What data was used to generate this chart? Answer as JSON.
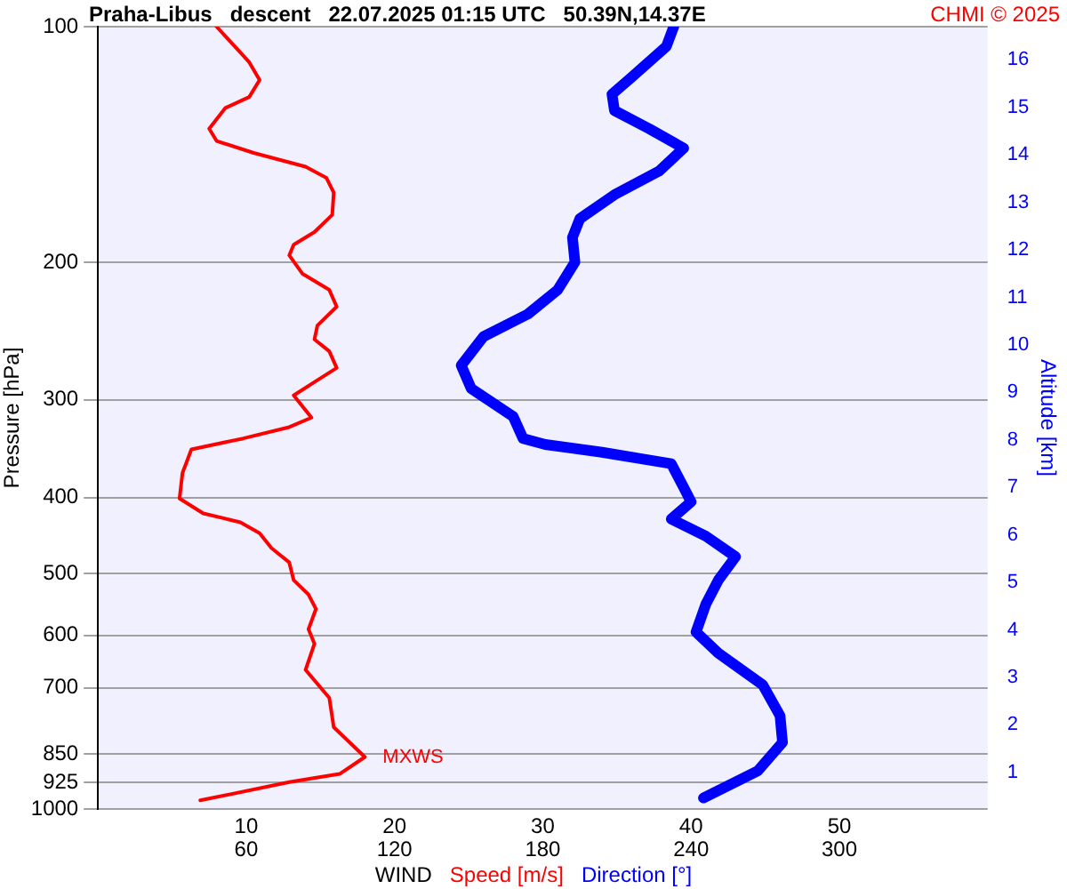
{
  "chart_data": {
    "type": "line",
    "orientation": "horizontal",
    "title": "Praha-Libus   descent   22.07.2025 01:15 UTC   50.39N,14.37E",
    "xlabel": "WIND",
    "ylabel": "Pressure [hPa]",
    "y2label": "Altitude [km]",
    "annotations": [
      "CHMI © 2025",
      {
        "text": "MXWS",
        "x": 18,
        "y": 858
      }
    ],
    "xlim": [
      0,
      60
    ],
    "xticks": [
      10,
      20,
      30,
      40,
      50
    ],
    "x2lim": [
      0,
      360
    ],
    "x2ticks": [
      60,
      120,
      180,
      240,
      300
    ],
    "ylim": [
      1000,
      100
    ],
    "yticks": [
      100,
      200,
      300,
      400,
      500,
      600,
      700,
      850,
      925,
      1000
    ],
    "log": "y",
    "y2lim": [
      0.23,
      16.7
    ],
    "y2ticks": [
      1,
      2,
      3,
      4,
      5,
      6,
      7,
      8,
      9,
      10,
      11,
      12,
      13,
      14,
      15,
      16
    ],
    "grid": true,
    "legend": "bottom",
    "marker": "none",
    "line_style": "solid",
    "series": [
      {
        "name": "Speed [m/s]",
        "color": "#ff0000",
        "values": [
          8.0,
          10.2,
          10.9,
          10.2,
          8.6,
          7.5,
          8.0,
          10.5,
          14.0,
          15.4,
          15.9,
          15.8,
          14.6,
          13.2,
          12.9,
          13.8,
          15.6,
          16.1,
          14.8,
          14.6,
          15.6,
          16.1,
          14.8,
          13.2,
          14.4,
          12.9,
          9.8,
          6.3,
          5.7,
          5.5,
          7.1,
          9.6,
          10.9,
          11.7,
          12.9,
          13.2,
          14.2,
          14.7,
          14.2,
          14.6,
          14.0,
          15.6,
          15.9,
          18.0,
          16.3,
          12.9,
          6.9
        ],
        "x": [
          100,
          111,
          117,
          123,
          127,
          135,
          140,
          145,
          151,
          156,
          163,
          174,
          183,
          190,
          196,
          207,
          217,
          228,
          241,
          251,
          260,
          273,
          283,
          296,
          316,
          325,
          336,
          347,
          372,
          401,
          419,
          430,
          444,
          464,
          484,
          510,
          532,
          555,
          589,
          615,
          664,
          721,
          786,
          858,
          902,
          924,
          975
        ]
      },
      {
        "name": "Direction [°]",
        "color": "#0000ff",
        "axis": "x2",
        "values": [
          233,
          230,
          216,
          208,
          209,
          223,
          237,
          227,
          209,
          195,
          192,
          193,
          186,
          174,
          156,
          147,
          151,
          168,
          172,
          181,
          204,
          232,
          237,
          240,
          232,
          246,
          258,
          251,
          246,
          242,
          251,
          269,
          276,
          277,
          267,
          245
        ],
        "x": [
          100,
          106,
          116,
          122,
          128,
          135,
          143,
          153,
          164,
          176,
          186,
          200,
          217,
          233,
          249,
          271,
          290,
          315,
          336,
          342,
          350,
          362,
          388,
          405,
          426,
          448,
          476,
          510,
          547,
          594,
          632,
          694,
          760,
          822,
          894,
          968
        ]
      }
    ]
  }
}
